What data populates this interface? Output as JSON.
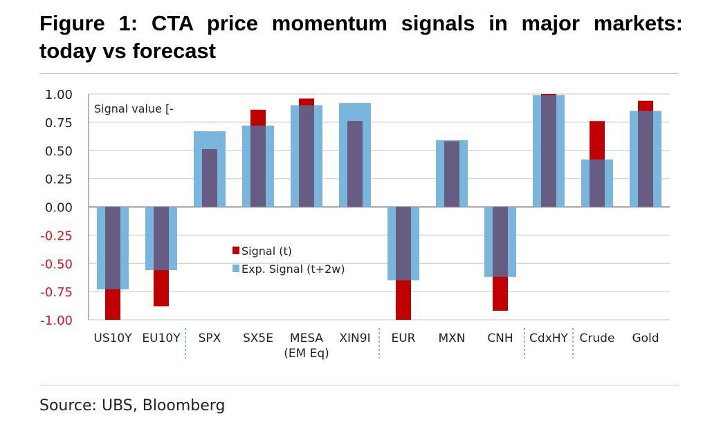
{
  "title": "Figure 1: CTA price momentum signals in major markets: today vs forecast",
  "source": "Source: UBS, Bloomberg",
  "chart_data": {
    "type": "bar",
    "title": "Figure 1: CTA price momentum signals in major markets: today vs forecast",
    "ylabel": "Signal value [-",
    "ylim": [
      -1,
      1
    ],
    "yticks": [
      "1.00",
      "0.75",
      "0.50",
      "0.25",
      "0.00",
      "-0.25",
      "-0.50",
      "-0.75",
      "-1.00"
    ],
    "grid": true,
    "legend": "center",
    "categories": [
      "US10Y",
      "EU10Y",
      "SPX",
      "SX5E",
      "MESA\n(EM Eq)",
      "XIN9I",
      "EUR",
      "MXN",
      "CNH",
      "CdxHY",
      "Crude",
      "Gold"
    ],
    "separators_after": [
      1,
      5,
      8,
      9
    ],
    "series": [
      {
        "name": "Signal (t)",
        "color": "#c00000",
        "values": [
          -1.0,
          -0.88,
          0.51,
          0.86,
          0.96,
          0.76,
          -1.0,
          0.58,
          -0.92,
          1.0,
          0.76,
          0.94
        ]
      },
      {
        "name": "Exp. Signal (t+2w)",
        "color": "#7ab5dc",
        "values": [
          -0.73,
          -0.56,
          0.67,
          0.72,
          0.9,
          0.92,
          -0.65,
          0.59,
          -0.62,
          0.99,
          0.42,
          0.85
        ]
      }
    ],
    "overlap_color": "#675d82",
    "negative_tick_color": "#e0101a"
  }
}
